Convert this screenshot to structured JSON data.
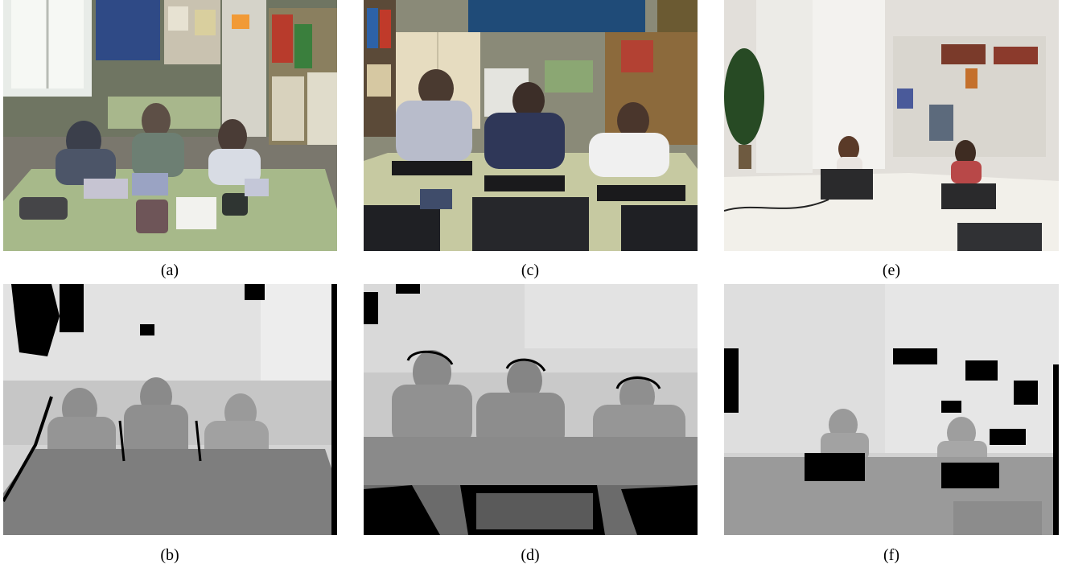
{
  "figure": {
    "panels": [
      {
        "id": "a",
        "label": "(a)",
        "kind": "rgb",
        "scene": "classroom-tables"
      },
      {
        "id": "c",
        "label": "(c)",
        "kind": "rgb",
        "scene": "classroom-computers"
      },
      {
        "id": "e",
        "label": "(e)",
        "kind": "rgb",
        "scene": "office-laptops"
      },
      {
        "id": "b",
        "label": "(b)",
        "kind": "depth",
        "scene": "classroom-tables"
      },
      {
        "id": "d",
        "label": "(d)",
        "kind": "depth",
        "scene": "classroom-computers"
      },
      {
        "id": "f",
        "label": "(f)",
        "kind": "depth",
        "scene": "office-laptops"
      }
    ]
  }
}
